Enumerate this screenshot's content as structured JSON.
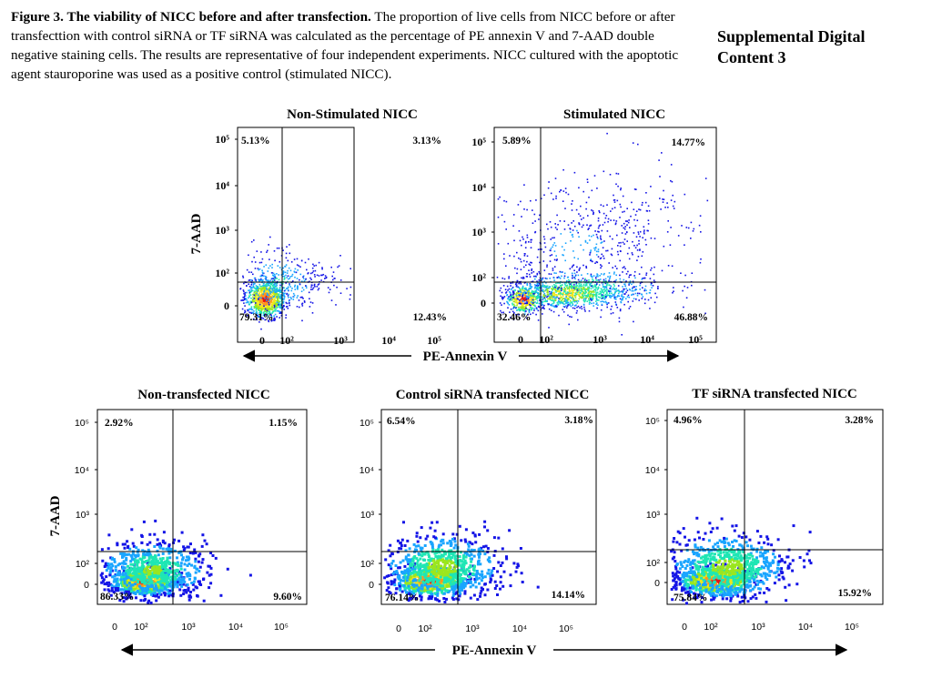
{
  "caption": {
    "title": "Figure 3. The viability of NICC before and after transfection.",
    "body": " The proportion of live cells from NICC before or after transfecttion with control siRNA or TF siRNA was calculated as the percentage of PE annexin V and 7-AAD double negative staining cells. The results are representative of four independent experiments. NICC cultured with the apoptotic agent stauroporine was used as a positive control (stimulated NICC)."
  },
  "supplemental": "Supplemental Digital Content 3",
  "colors": {
    "scatter": [
      "#1414e6",
      "#19a5ff",
      "#1ee6b4",
      "#9be61e",
      "#f0e619",
      "#ff961e",
      "#e61414"
    ]
  },
  "chart_data": [
    {
      "type": "scatter",
      "title": "Non-Stimulated NICC",
      "ylabel": "7-AAD",
      "xticks": [
        "0",
        "10²",
        "10³",
        "10⁴",
        "10⁵"
      ],
      "yticks": [
        "10⁵",
        "10⁴",
        "10³",
        "10²",
        "0"
      ],
      "quadrants": {
        "upper_left": "5.13%",
        "upper_right": "3.13%",
        "lower_left": "79.31%",
        "lower_right": "12.43%"
      }
    },
    {
      "type": "scatter",
      "title": "Stimulated NICC",
      "xticks": [
        "0",
        "10²",
        "10³",
        "10⁴",
        "10⁵"
      ],
      "yticks": [
        "10⁵",
        "10⁴",
        "10³",
        "10²",
        "0"
      ],
      "quadrants": {
        "upper_left": "5.89%",
        "upper_right": "14.77%",
        "lower_left": "32.46%",
        "lower_right": "46.88%"
      }
    },
    {
      "type": "scatter",
      "title": "Non-transfected NICC",
      "ylabel": "7-AAD",
      "xticks": [
        "0",
        "10²",
        "10³",
        "10⁴",
        "10⁵"
      ],
      "yticks": [
        "10⁵",
        "10⁴",
        "10³",
        "10²",
        "0"
      ],
      "quadrants": {
        "upper_left": "2.92%",
        "upper_right": "1.15%",
        "lower_left": "86.33%",
        "lower_right": "9.60%"
      }
    },
    {
      "type": "scatter",
      "title": "Control siRNA transfected NICC",
      "xticks": [
        "0",
        "10²",
        "10³",
        "10⁴",
        "10⁵"
      ],
      "yticks": [
        "10⁵",
        "10⁴",
        "10³",
        "10²",
        "0"
      ],
      "quadrants": {
        "upper_left": "6.54%",
        "upper_right": "3.18%",
        "lower_left": "76.14%",
        "lower_right": "14.14%"
      }
    },
    {
      "type": "scatter",
      "title": "TF siRNA transfected NICC",
      "xticks": [
        "0",
        "10²",
        "10³",
        "10⁴",
        "10⁵"
      ],
      "yticks": [
        "10⁵",
        "10⁴",
        "10³",
        "10²",
        "0"
      ],
      "quadrants": {
        "upper_left": "4.96%",
        "upper_right": "3.28%",
        "lower_left": "75.84%",
        "lower_right": "15.92%"
      }
    }
  ],
  "xlabel_top": "PE-Annexin V",
  "xlabel_bottom": "PE-Annexin V"
}
